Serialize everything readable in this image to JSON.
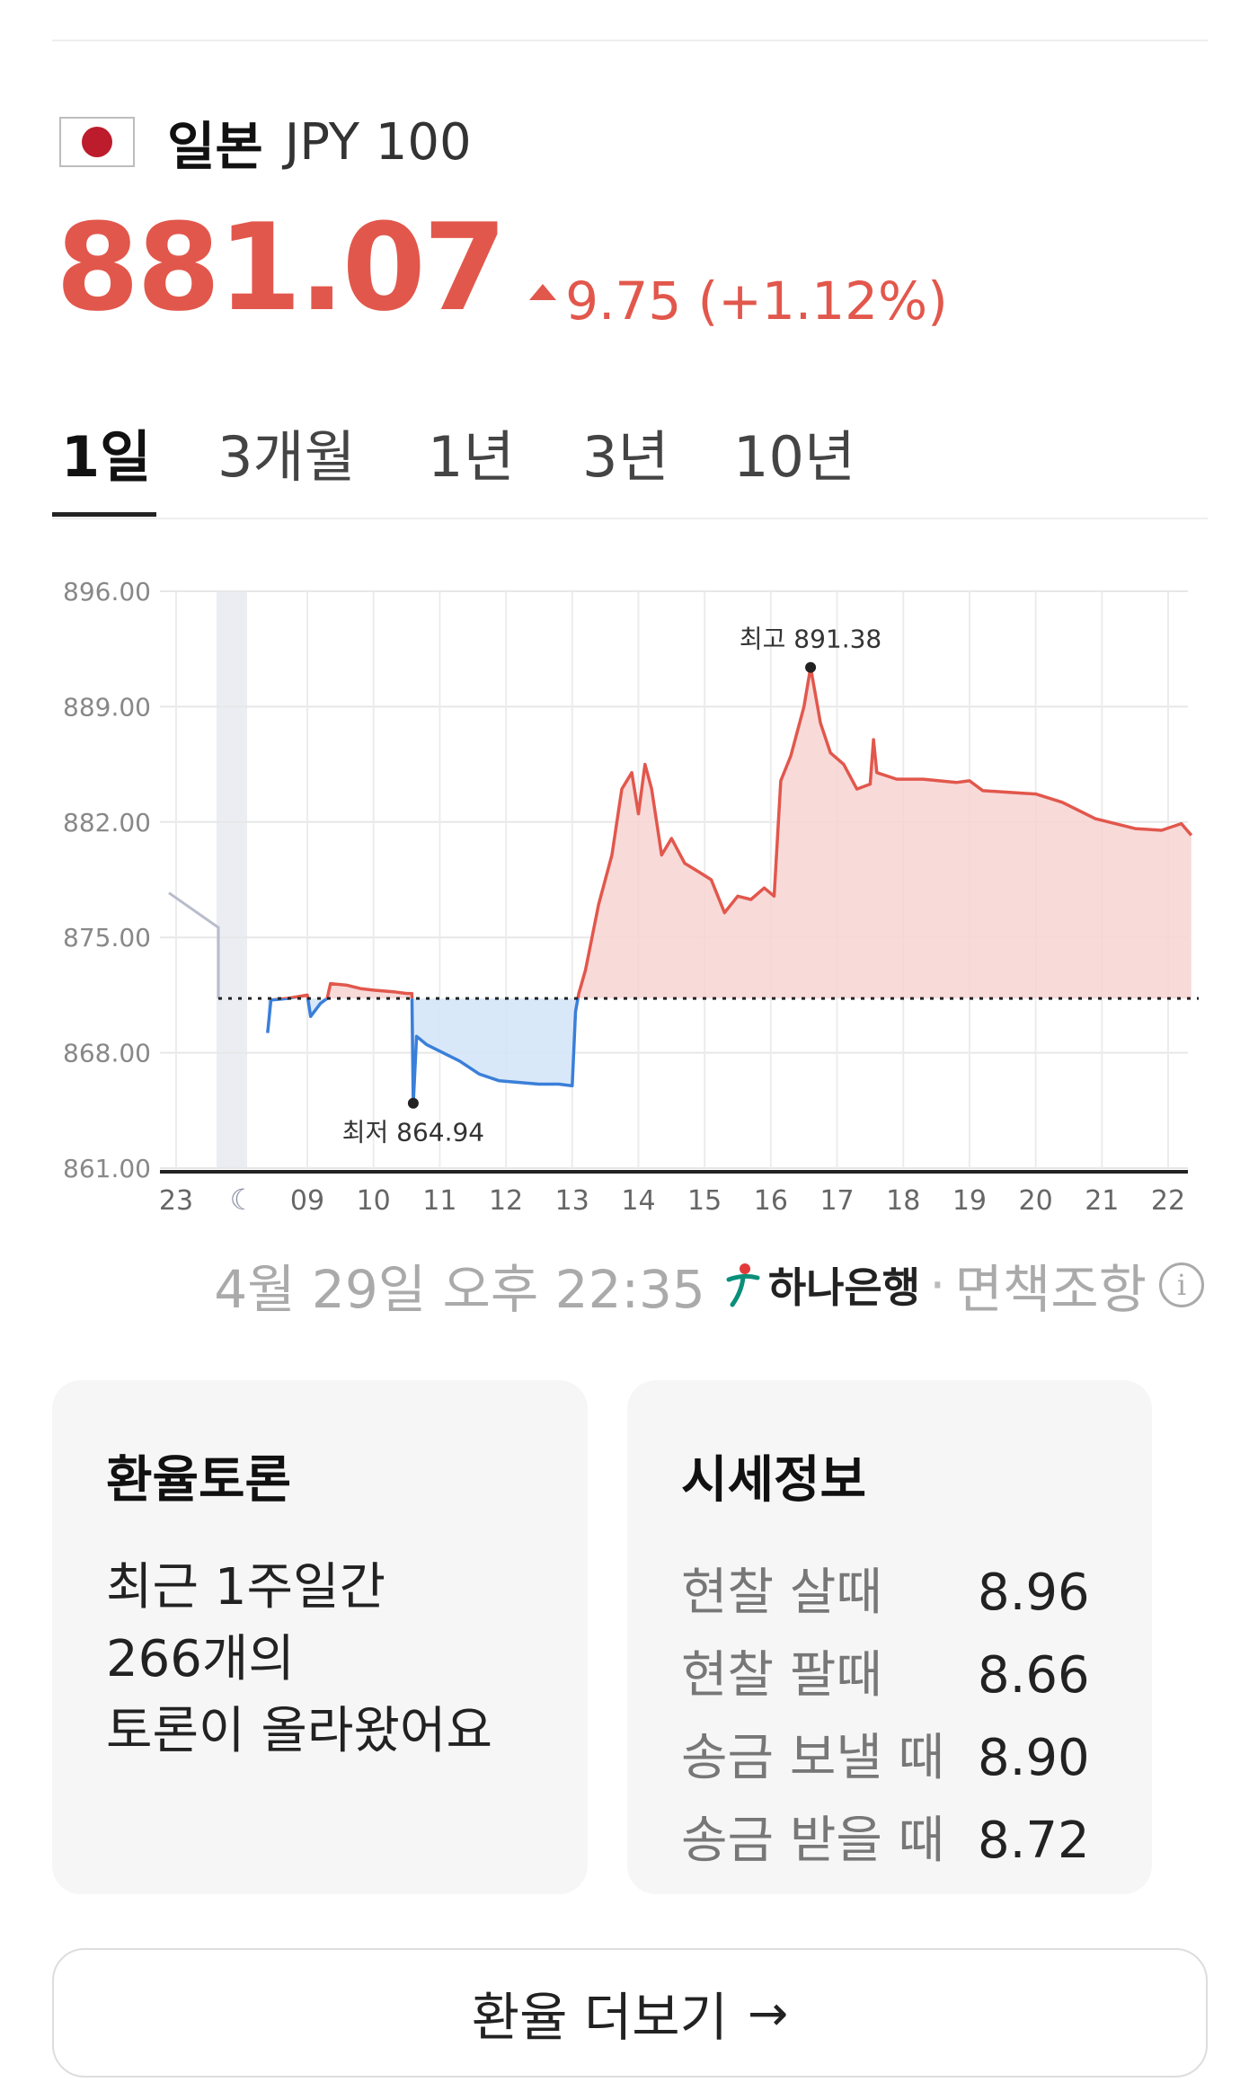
{
  "header": {
    "country": "일본",
    "currency_code": "JPY 100",
    "flag_icon": "japan-flag-icon"
  },
  "quote": {
    "price": "881.07",
    "change": "9.75 (+1.12%)",
    "direction": "up",
    "color_up": "#e2574c"
  },
  "tabs": [
    {
      "label": "1일",
      "active": true
    },
    {
      "label": "3개월",
      "active": false
    },
    {
      "label": "1년",
      "active": false
    },
    {
      "label": "3년",
      "active": false
    },
    {
      "label": "10년",
      "active": false
    }
  ],
  "chart_data": {
    "type": "area",
    "y_ticks": [
      "896.00",
      "889.00",
      "882.00",
      "875.00",
      "868.00",
      "861.00"
    ],
    "ylim": [
      861,
      896
    ],
    "x_ticks": [
      "23",
      "09",
      "10",
      "11",
      "12",
      "13",
      "14",
      "15",
      "16",
      "17",
      "18",
      "19",
      "20",
      "21",
      "22"
    ],
    "baseline": 871.3,
    "high_label": "최고 891.38",
    "low_label": "최저 864.94",
    "high": {
      "x": 16.6,
      "y": 891.38
    },
    "low": {
      "x": 10.6,
      "y": 864.94
    },
    "colors": {
      "above": "#e2574c",
      "below": "#3a7fd9",
      "prev_day": "#b8bccb"
    },
    "prev_day_points": [
      [
        6.8,
        877.7
      ],
      [
        7.9,
        875.6
      ]
    ],
    "series": [
      [
        8.4,
        869.2
      ],
      [
        8.45,
        871.2
      ],
      [
        8.7,
        871.3
      ],
      [
        9.0,
        871.5
      ],
      [
        9.05,
        870.2
      ],
      [
        9.2,
        871.0
      ],
      [
        9.3,
        871.3
      ],
      [
        9.35,
        872.2
      ],
      [
        9.6,
        872.1
      ],
      [
        9.8,
        871.9
      ],
      [
        10.0,
        871.8
      ],
      [
        10.3,
        871.7
      ],
      [
        10.5,
        871.6
      ],
      [
        10.58,
        871.6
      ],
      [
        10.6,
        864.9
      ],
      [
        10.65,
        869.0
      ],
      [
        10.8,
        868.5
      ],
      [
        11.0,
        868.1
      ],
      [
        11.3,
        867.5
      ],
      [
        11.6,
        866.7
      ],
      [
        11.9,
        866.3
      ],
      [
        12.2,
        866.2
      ],
      [
        12.5,
        866.1
      ],
      [
        12.8,
        866.1
      ],
      [
        13.0,
        866.0
      ],
      [
        13.05,
        870.5
      ],
      [
        13.1,
        871.6
      ],
      [
        13.2,
        873.0
      ],
      [
        13.4,
        877.0
      ],
      [
        13.6,
        880.0
      ],
      [
        13.75,
        884.0
      ],
      [
        13.9,
        885.0
      ],
      [
        14.0,
        882.5
      ],
      [
        14.1,
        885.5
      ],
      [
        14.2,
        884.0
      ],
      [
        14.35,
        880.0
      ],
      [
        14.5,
        881.0
      ],
      [
        14.7,
        879.5
      ],
      [
        14.9,
        879.0
      ],
      [
        15.1,
        878.5
      ],
      [
        15.3,
        876.5
      ],
      [
        15.5,
        877.5
      ],
      [
        15.7,
        877.3
      ],
      [
        15.9,
        878.0
      ],
      [
        16.05,
        877.5
      ],
      [
        16.15,
        884.5
      ],
      [
        16.3,
        886.0
      ],
      [
        16.5,
        889.0
      ],
      [
        16.6,
        891.38
      ],
      [
        16.75,
        888.0
      ],
      [
        16.9,
        886.2
      ],
      [
        17.1,
        885.5
      ],
      [
        17.3,
        884.0
      ],
      [
        17.5,
        884.3
      ],
      [
        17.55,
        887.0
      ],
      [
        17.6,
        885.0
      ],
      [
        17.9,
        884.6
      ],
      [
        18.3,
        884.6
      ],
      [
        18.8,
        884.4
      ],
      [
        19.0,
        884.5
      ],
      [
        19.2,
        883.9
      ],
      [
        19.6,
        883.8
      ],
      [
        20.0,
        883.7
      ],
      [
        20.4,
        883.2
      ],
      [
        20.9,
        882.2
      ],
      [
        21.5,
        881.6
      ],
      [
        21.9,
        881.5
      ],
      [
        22.2,
        881.9
      ],
      [
        22.35,
        881.2
      ]
    ]
  },
  "source": {
    "timestamp": "4월 29일 오후 22:35",
    "bank": "하나은행",
    "separator": "·",
    "disclaimer": "면책조항",
    "info_icon": "i"
  },
  "discussion": {
    "title": "환율토론",
    "lines": [
      "최근 1주일간",
      "266개의",
      "토론이 올라왔어요"
    ]
  },
  "market_info": {
    "title": "시세정보",
    "rows": [
      {
        "label": "현찰 살때",
        "value": "8.96"
      },
      {
        "label": "현찰 팔때",
        "value": "8.66"
      },
      {
        "label": "송금 보낼 때",
        "value": "8.90"
      },
      {
        "label": "송금 받을 때",
        "value": "8.72"
      }
    ]
  },
  "more_button": {
    "label": "환율 더보기",
    "arrow": "→"
  }
}
